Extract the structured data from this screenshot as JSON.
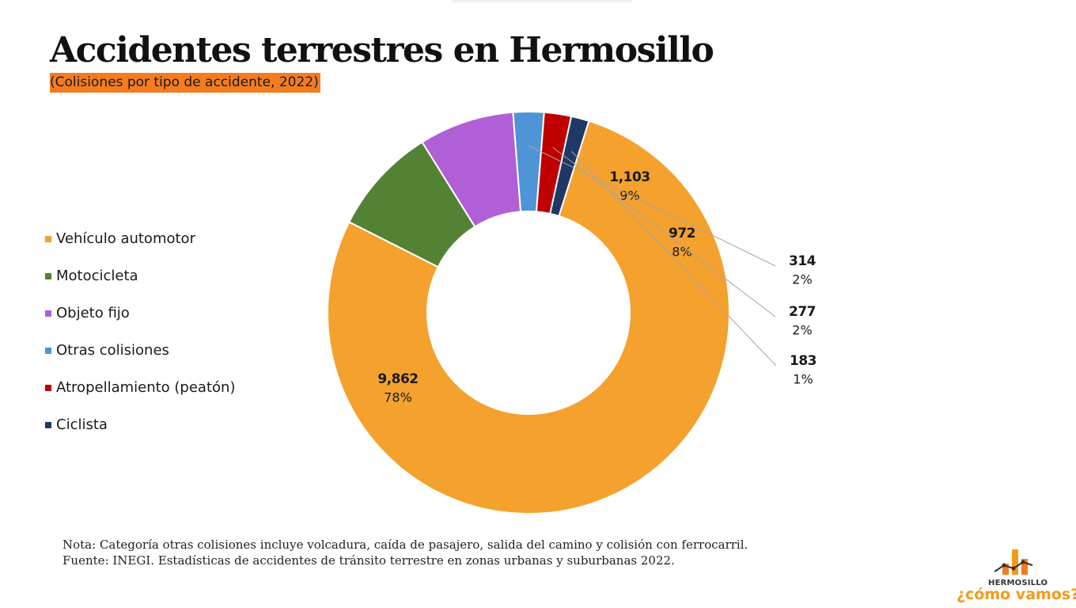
{
  "title": "Accidentes terrestres en Hermosillo",
  "subtitle": "(Colisiones por tipo de accidente, 2022)",
  "note": "Nota: Categoría otras colisiones incluye volcadura, caída de pasajero, salida del camino y colisión con ferrocarril.",
  "source": "Fuente: INEGI. Estadísticas de accidentes de tránsito terrestre en zonas urbanas y suburbanas 2022.",
  "logo": {
    "small_text": "HERMOSILLO",
    "main_text": "¿cómo vamos?"
  },
  "chart_data": {
    "type": "pie",
    "subtype": "donut",
    "legend_position": "left",
    "categories": [
      "Vehículo automotor",
      "Motocicleta",
      "Objeto fijo",
      "Otras colisiones",
      "Atropellamiento (peatón)",
      "Ciclista"
    ],
    "values": [
      9862,
      1103,
      972,
      314,
      277,
      183
    ],
    "value_labels": [
      "9,862",
      "1,103",
      "972",
      "314",
      "277",
      "183"
    ],
    "percent_labels": [
      "78%",
      "9%",
      "8%",
      "2%",
      "2%",
      "1%"
    ],
    "colors": [
      "#f4a12e",
      "#548235",
      "#b05fd6",
      "#4f94d6",
      "#c00000",
      "#203864"
    ]
  }
}
